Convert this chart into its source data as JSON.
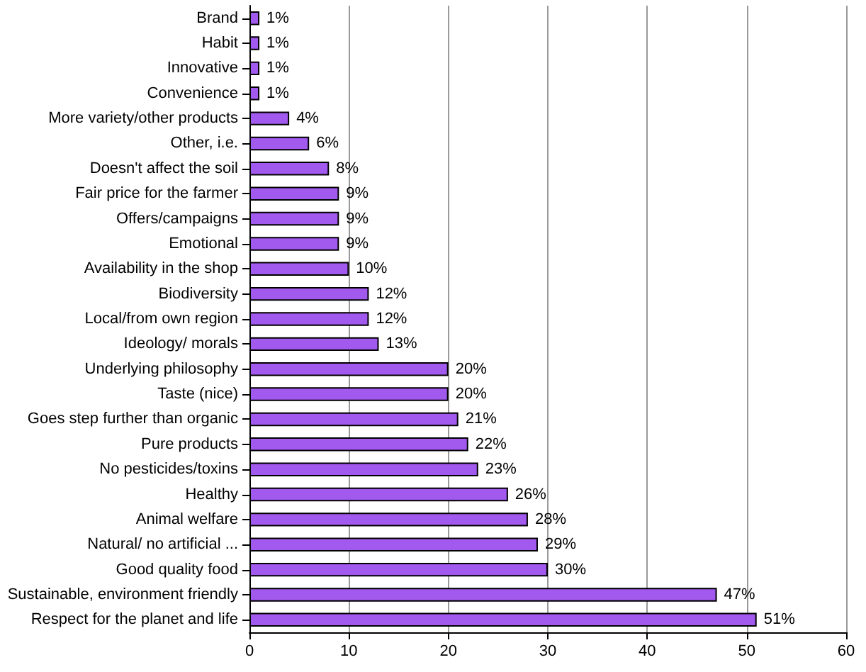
{
  "chart_data": {
    "type": "bar",
    "orientation": "horizontal",
    "categories": [
      "Brand",
      "Habit",
      "Innovative",
      "Convenience",
      "More variety/other products",
      "Other, i.e.",
      "Doesn't affect the soil",
      "Fair price for the farmer",
      "Offers/campaigns",
      "Emotional",
      "Availability in the shop",
      "Biodiversity",
      "Local/from own region",
      "Ideology/ morals",
      "Underlying philosophy",
      "Taste (nice)",
      "Goes step further than organic",
      "Pure products",
      "No pesticides/toxins",
      "Healthy",
      "Animal welfare",
      "Natural/ no artificial ...",
      "Good quality food",
      "Sustainable, environment friendly",
      "Respect for the planet and life"
    ],
    "values": [
      1,
      1,
      1,
      1,
      4,
      6,
      8,
      9,
      9,
      9,
      10,
      12,
      12,
      13,
      20,
      20,
      21,
      22,
      23,
      26,
      28,
      29,
      30,
      47,
      51
    ],
    "value_labels": [
      "1%",
      "1%",
      "1%",
      "1%",
      "4%",
      "6%",
      "8%",
      "9%",
      "9%",
      "9%",
      "10%",
      "12%",
      "12%",
      "13%",
      "20%",
      "20%",
      "21%",
      "22%",
      "23%",
      "26%",
      "28%",
      "29%",
      "30%",
      "47%",
      "51%"
    ],
    "color": "#a259ee",
    "xlim": [
      0,
      60
    ],
    "xticks": [
      0,
      10,
      20,
      30,
      40,
      50,
      60
    ],
    "grid": "x"
  }
}
